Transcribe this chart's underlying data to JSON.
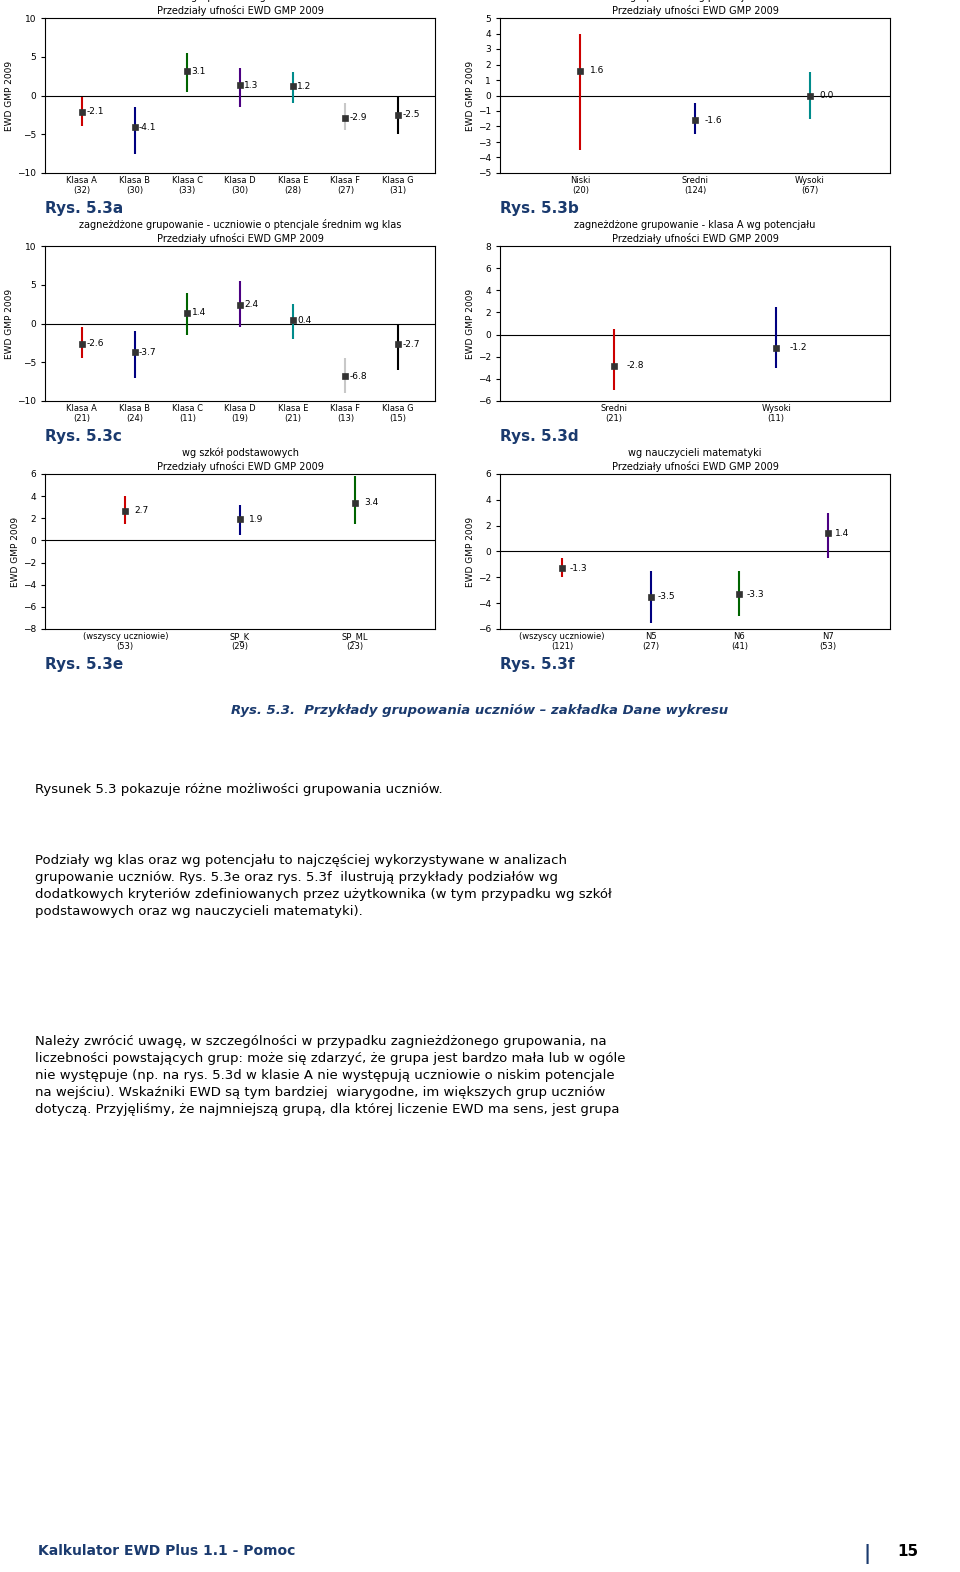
{
  "background_color": "#ffffff",
  "page_title": "Rys. 5.3.  Przykłady grupowania uczniów – zakładka Dane wykresu",
  "rys_labels": [
    "Rys. 5.3a",
    "Rys. 5.3b",
    "Rys. 5.3c",
    "Rys. 5.3d",
    "Rys. 5.3e",
    "Rys. 5.3f"
  ],
  "plots": [
    {
      "title_line1": "grupowanie wg klas",
      "title_line2": "Przedziały ufności EWD GMP 2009",
      "ylabel": "EWD GMP 2009",
      "ylim": [
        -10,
        10
      ],
      "yticks": [
        -10,
        -5,
        0,
        5,
        10
      ],
      "categories": [
        "Klasa A\n(32)",
        "Klasa B\n(30)",
        "Klasa C\n(33)",
        "Klasa D\n(30)",
        "Klasa E\n(28)",
        "Klasa F\n(27)",
        "Klasa G\n(31)"
      ],
      "values": [
        -2.1,
        -4.1,
        3.1,
        1.3,
        1.2,
        -2.9,
        -2.5
      ],
      "ci_low": [
        -4.0,
        -7.5,
        0.5,
        -1.5,
        -1.0,
        -4.5,
        -5.0
      ],
      "ci_high": [
        -0.2,
        -1.5,
        5.5,
        3.5,
        3.0,
        -1.0,
        0.0
      ],
      "colors": [
        "#cc0000",
        "#000080",
        "#006400",
        "#4b0082",
        "#008b8b",
        "#c8c8c8",
        "#000000"
      ]
    },
    {
      "title_line1": "grupowanie wg potencjału",
      "title_line2": "Przedziały ufności EWD GMP 2009",
      "ylabel": "EWD GMP 2009",
      "ylim": [
        -5,
        5
      ],
      "yticks": [
        -5,
        -4,
        -3,
        -2,
        -1,
        0,
        1,
        2,
        3,
        4,
        5
      ],
      "categories": [
        "Niski\n(20)",
        "Sredni\n(124)",
        "Wysoki\n(67)"
      ],
      "values": [
        1.6,
        -1.6,
        0.0
      ],
      "ci_low": [
        -3.5,
        -2.5,
        -1.5
      ],
      "ci_high": [
        4.0,
        -0.5,
        1.5
      ],
      "colors": [
        "#cc0000",
        "#000080",
        "#008b8b"
      ]
    },
    {
      "title_line1": "zagneżdżone grupowanie - uczniowie o ptencjale średnim wg klas",
      "title_line2": "Przedziały ufności EWD GMP 2009",
      "ylabel": "EWD GMP 2009",
      "ylim": [
        -10,
        10
      ],
      "yticks": [
        -10,
        -5,
        0,
        5,
        10
      ],
      "categories": [
        "Klasa A\n(21)",
        "Klasa B\n(24)",
        "Klasa C\n(11)",
        "Klasa D\n(19)",
        "Klasa E\n(21)",
        "Klasa F\n(13)",
        "Klasa G\n(15)"
      ],
      "values": [
        -2.6,
        -3.7,
        1.4,
        2.4,
        0.4,
        -6.8,
        -2.7
      ],
      "ci_low": [
        -4.5,
        -7.0,
        -1.5,
        -0.5,
        -2.0,
        -9.0,
        -6.0
      ],
      "ci_high": [
        -0.5,
        -1.0,
        4.0,
        5.5,
        2.5,
        -4.5,
        0.0
      ],
      "colors": [
        "#cc0000",
        "#000080",
        "#006400",
        "#4b0082",
        "#008b8b",
        "#c8c8c8",
        "#000000"
      ]
    },
    {
      "title_line1": "zagneżdżone grupowanie - klasa A wg potencjału",
      "title_line2": "Przedziały ufności EWD GMP 2009",
      "ylabel": "EWD GMP 2009",
      "ylim": [
        -6,
        8
      ],
      "yticks": [
        -6,
        -4,
        -2,
        0,
        2,
        4,
        6,
        8
      ],
      "categories": [
        "Sredni\n(21)",
        "Wysoki\n(11)"
      ],
      "values": [
        -2.8,
        -1.2
      ],
      "ci_low": [
        -5.0,
        -3.0
      ],
      "ci_high": [
        0.5,
        2.5
      ],
      "colors": [
        "#cc0000",
        "#000080"
      ]
    },
    {
      "title_line1": "wg szkół podstawowych",
      "title_line2": "Przedziały ufności EWD GMP 2009",
      "ylabel": "EWD GMP 2009",
      "ylim": [
        -8,
        6
      ],
      "yticks": [
        -8,
        -6,
        -4,
        -2,
        0,
        2,
        4,
        6
      ],
      "categories": [
        "(wszyscy uczniowie)\n(53)",
        "SP_K\n(29)",
        "SP_ML\n(23)"
      ],
      "values": [
        2.7,
        1.9,
        3.4
      ],
      "ci_low": [
        1.5,
        0.5,
        1.5
      ],
      "ci_high": [
        4.0,
        3.2,
        5.8
      ],
      "colors": [
        "#cc0000",
        "#000080",
        "#006400"
      ]
    },
    {
      "title_line1": "wg nauczycieli matematyki",
      "title_line2": "Przedziały ufności EWD GMP 2009",
      "ylabel": "EWD GMP 2009",
      "ylim": [
        -6,
        6
      ],
      "yticks": [
        -6,
        -4,
        -2,
        0,
        2,
        4,
        6
      ],
      "categories": [
        "(wszyscy uczniowie)\n(121)",
        "N5\n(27)",
        "N6\n(41)",
        "N7\n(53)"
      ],
      "values": [
        -1.3,
        -3.5,
        -3.3,
        1.4
      ],
      "ci_low": [
        -2.0,
        -5.5,
        -5.0,
        -0.5
      ],
      "ci_high": [
        -0.5,
        -1.5,
        -1.5,
        3.0
      ],
      "colors": [
        "#cc0000",
        "#000080",
        "#006400",
        "#4b0082"
      ]
    }
  ],
  "para1": "Rysunek 5.3 pokazuje różne możliwości grupowania uczniów.",
  "para2_bold": "Podziały wg klas oraz wg potencjału to najczęściej wykorzystywane w analizach\ngrupowanie uczniów. Rys. 5.3e oraz rys. 5.3f  ilustrują przykłady podziałów wg\ndodatkowych kryteriów zdefiniowanych przez użytkownika (w tym przypadku wg szkół\npodstawowych oraz wg nauczycieli matematyki).",
  "para3": "Należy zwrócić uwagę, w szczególności w przypadku zagnieżdżonego grupowania, na\nliczebności powstających grup: może się zdarzyć, że grupa jest bardzo mała lub w ogóle\nnie występuje (np. na rys. 5.3d w klasie A nie występują uczniowie o niskim potencjale\nna wejściu). Wskaźniki EWD są tym bardziej  wiarygodne, im większych grup uczniów\ndotyczą. Przyjęliśmy, że najmniejszą grupą, dla której liczenie EWD ma sens, jest grupa",
  "footer_text": "Kalkulator EWD Plus 1.1 - Pomoc",
  "footer_page": "15"
}
